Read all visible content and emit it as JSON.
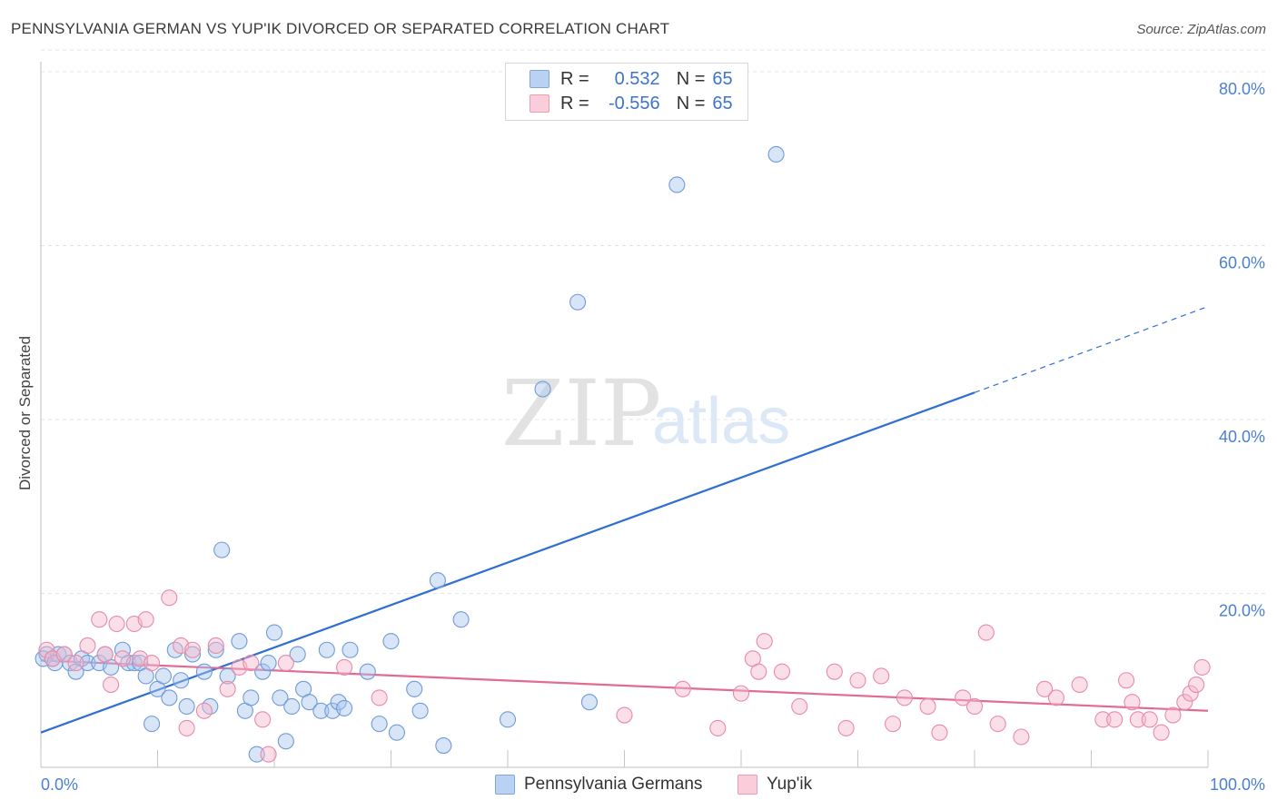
{
  "header": {
    "title": "PENNSYLVANIA GERMAN VS YUP'IK DIVORCED OR SEPARATED CORRELATION CHART",
    "source": "Source: ZipAtlas.com"
  },
  "legend": {
    "rows": [
      {
        "r_label": "R =",
        "r_value": "0.532",
        "n_label": "N =",
        "n_value": "65",
        "color": "#a9c6ee"
      },
      {
        "r_label": "R =",
        "r_value": "-0.556",
        "n_label": "N =",
        "n_value": "65",
        "color": "#f6b8cb"
      }
    ]
  },
  "bottom_legend": {
    "series1": "Pennsylvania Germans",
    "series2": "Yup'ik"
  },
  "watermark": {
    "zip": "ZIP",
    "atlas": "atlas"
  },
  "chart_data": {
    "type": "scatter",
    "title": "PENNSYLVANIA GERMAN VS YUP'IK DIVORCED OR SEPARATED CORRELATION CHART",
    "xlabel": "",
    "ylabel": "Divorced or Separated",
    "xlim": [
      0,
      100
    ],
    "ylim": [
      0,
      83
    ],
    "x_ticks": [
      {
        "value": 0,
        "label": "0.0%"
      },
      {
        "value": 100,
        "label": "100.0%"
      }
    ],
    "y_ticks": [
      {
        "value": 20,
        "label": "20.0%"
      },
      {
        "value": 40,
        "label": "40.0%"
      },
      {
        "value": 60,
        "label": "60.0%"
      },
      {
        "value": 80,
        "label": "80.0%"
      }
    ],
    "grid": true,
    "series": [
      {
        "name": "Pennsylvania Germans",
        "color": "#a9c6ee",
        "stroke": "#6f9ad9",
        "line_color": "#2f6fd1",
        "trend": {
          "x0": 0,
          "y0": 4.0,
          "x1": 80,
          "y1": 43.1,
          "dash_to_x": 100,
          "dash_to_y": 53.0
        },
        "points": [
          [
            0.5,
            13
          ],
          [
            1,
            12.5
          ],
          [
            1.5,
            13
          ],
          [
            2,
            13
          ],
          [
            2.5,
            12
          ],
          [
            3,
            11
          ],
          [
            3.5,
            12.5
          ],
          [
            4,
            12
          ],
          [
            5,
            12
          ],
          [
            5.5,
            13
          ],
          [
            6,
            11.5
          ],
          [
            7,
            13.5
          ],
          [
            7.5,
            12
          ],
          [
            8,
            12
          ],
          [
            8.5,
            12
          ],
          [
            9,
            10.5
          ],
          [
            9.5,
            5
          ],
          [
            10,
            9
          ],
          [
            10.5,
            10.5
          ],
          [
            11,
            8
          ],
          [
            11.5,
            13.5
          ],
          [
            12,
            10
          ],
          [
            12.5,
            7
          ],
          [
            13,
            13
          ],
          [
            14,
            11
          ],
          [
            14.5,
            7
          ],
          [
            15,
            13.5
          ],
          [
            15.5,
            25
          ],
          [
            16,
            10.5
          ],
          [
            17,
            14.5
          ],
          [
            17.5,
            6.5
          ],
          [
            18,
            8
          ],
          [
            18.5,
            1.5
          ],
          [
            19,
            11
          ],
          [
            19.5,
            12
          ],
          [
            20,
            15.5
          ],
          [
            20.5,
            8
          ],
          [
            21,
            3
          ],
          [
            21.5,
            7
          ],
          [
            22,
            13
          ],
          [
            22.5,
            9
          ],
          [
            23,
            7.5
          ],
          [
            24,
            6.5
          ],
          [
            24.5,
            13.5
          ],
          [
            25,
            6.5
          ],
          [
            25.5,
            7.5
          ],
          [
            26,
            6.8
          ],
          [
            26.5,
            13.5
          ],
          [
            28,
            11
          ],
          [
            29,
            5
          ],
          [
            30,
            14.5
          ],
          [
            30.5,
            4
          ],
          [
            32,
            9
          ],
          [
            32.5,
            6.5
          ],
          [
            34,
            21.5
          ],
          [
            34.5,
            2.5
          ],
          [
            36,
            17
          ],
          [
            40,
            5.5
          ],
          [
            43,
            43.5
          ],
          [
            46,
            53.5
          ],
          [
            47,
            7.5
          ],
          [
            54.5,
            67
          ],
          [
            63,
            70.5
          ],
          [
            0.2,
            12.5
          ],
          [
            1.2,
            12
          ]
        ]
      },
      {
        "name": "Yup'ik",
        "color": "#f6b8cb",
        "stroke": "#e88aa8",
        "line_color": "#e36a93",
        "trend": {
          "x0": 0,
          "y0": 12.3,
          "x1": 100,
          "y1": 6.5
        },
        "points": [
          [
            0.5,
            13.5
          ],
          [
            1,
            12.5
          ],
          [
            2,
            13
          ],
          [
            3,
            12
          ],
          [
            4,
            14
          ],
          [
            5,
            17
          ],
          [
            5.5,
            13
          ],
          [
            6,
            9.5
          ],
          [
            6.5,
            16.5
          ],
          [
            7,
            12.5
          ],
          [
            8,
            16.5
          ],
          [
            8.5,
            12.5
          ],
          [
            9,
            17
          ],
          [
            9.5,
            12
          ],
          [
            11,
            19.5
          ],
          [
            12,
            14
          ],
          [
            12.5,
            4.5
          ],
          [
            13,
            13.5
          ],
          [
            14,
            6.5
          ],
          [
            15,
            14
          ],
          [
            16,
            9
          ],
          [
            17,
            11.5
          ],
          [
            18,
            12
          ],
          [
            19,
            5.5
          ],
          [
            19.5,
            1.5
          ],
          [
            21,
            12
          ],
          [
            26,
            11.5
          ],
          [
            29,
            8
          ],
          [
            50,
            6
          ],
          [
            55,
            9
          ],
          [
            58,
            4.5
          ],
          [
            60,
            8.5
          ],
          [
            61,
            12.5
          ],
          [
            61.5,
            11
          ],
          [
            62,
            14.5
          ],
          [
            63.5,
            11
          ],
          [
            65,
            7
          ],
          [
            68,
            11
          ],
          [
            69,
            4.5
          ],
          [
            70,
            10
          ],
          [
            72,
            10.5
          ],
          [
            73,
            5
          ],
          [
            74,
            8
          ],
          [
            76,
            7
          ],
          [
            77,
            4
          ],
          [
            79,
            8
          ],
          [
            80,
            7
          ],
          [
            81,
            15.5
          ],
          [
            82,
            5
          ],
          [
            84,
            3.5
          ],
          [
            86,
            9
          ],
          [
            87,
            8
          ],
          [
            89,
            9.5
          ],
          [
            91,
            5.5
          ],
          [
            92,
            5.5
          ],
          [
            93,
            10
          ],
          [
            93.5,
            7.5
          ],
          [
            94,
            5.5
          ],
          [
            95,
            5.5
          ],
          [
            96,
            4
          ],
          [
            97,
            6
          ],
          [
            98,
            7.5
          ],
          [
            98.5,
            8.5
          ],
          [
            99,
            9.5
          ],
          [
            99.5,
            11.5
          ]
        ]
      }
    ]
  }
}
